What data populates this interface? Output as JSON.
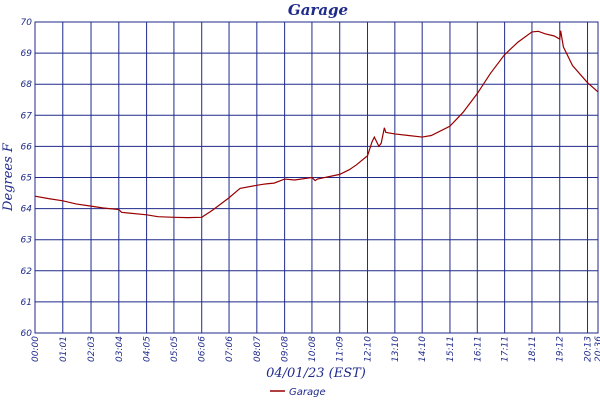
{
  "chart_data": {
    "type": "line",
    "title": "Garage",
    "xlabel": "04/01/23 (EST)",
    "ylabel": "Degrees F",
    "ylim": [
      60,
      70
    ],
    "yticks": [
      "60",
      "61",
      "62",
      "63",
      "64",
      "65",
      "66",
      "67",
      "68",
      "69",
      "70"
    ],
    "xticks": [
      "00:00",
      "01:01",
      "02:03",
      "03:04",
      "04:05",
      "05:05",
      "06:06",
      "07:06",
      "08:07",
      "09:08",
      "10:08",
      "11:09",
      "12:10",
      "13:10",
      "14:10",
      "15:11",
      "16:11",
      "17:11",
      "18:11",
      "19:12",
      "20:13",
      "20:36"
    ],
    "xlim": [
      "00:00",
      "20:36"
    ],
    "grid": true,
    "legend": "bottom-center",
    "series": [
      {
        "name": "Garage",
        "color": "#990000",
        "x": [
          "00:00",
          "00:30",
          "01:01",
          "01:30",
          "02:03",
          "02:30",
          "03:04",
          "03:10",
          "04:05",
          "04:30",
          "05:05",
          "05:35",
          "06:06",
          "06:30",
          "07:06",
          "07:30",
          "08:07",
          "08:20",
          "08:30",
          "08:45",
          "09:08",
          "09:30",
          "10:08",
          "10:15",
          "10:20",
          "11:09",
          "11:30",
          "11:45",
          "12:10",
          "12:20",
          "12:25",
          "12:35",
          "12:40",
          "12:47",
          "12:50",
          "13:10",
          "13:40",
          "14:10",
          "14:30",
          "15:11",
          "15:40",
          "16:11",
          "16:40",
          "17:11",
          "17:40",
          "18:11",
          "18:25",
          "18:40",
          "19:00",
          "19:12",
          "19:14",
          "19:20",
          "19:40",
          "20:13",
          "20:36"
        ],
        "values": [
          64.4,
          64.32,
          64.25,
          64.15,
          64.08,
          64.02,
          63.97,
          63.88,
          63.8,
          63.74,
          63.72,
          63.71,
          63.72,
          63.95,
          64.35,
          64.65,
          64.75,
          64.78,
          64.8,
          64.82,
          64.95,
          64.92,
          65.0,
          64.9,
          64.95,
          65.1,
          65.25,
          65.4,
          65.7,
          66.15,
          66.3,
          66.0,
          66.1,
          66.6,
          66.45,
          66.4,
          66.35,
          66.3,
          66.35,
          66.65,
          67.1,
          67.7,
          68.35,
          68.95,
          69.35,
          69.68,
          69.7,
          69.62,
          69.55,
          69.45,
          69.72,
          69.2,
          68.6,
          68.05,
          67.75
        ]
      }
    ]
  }
}
